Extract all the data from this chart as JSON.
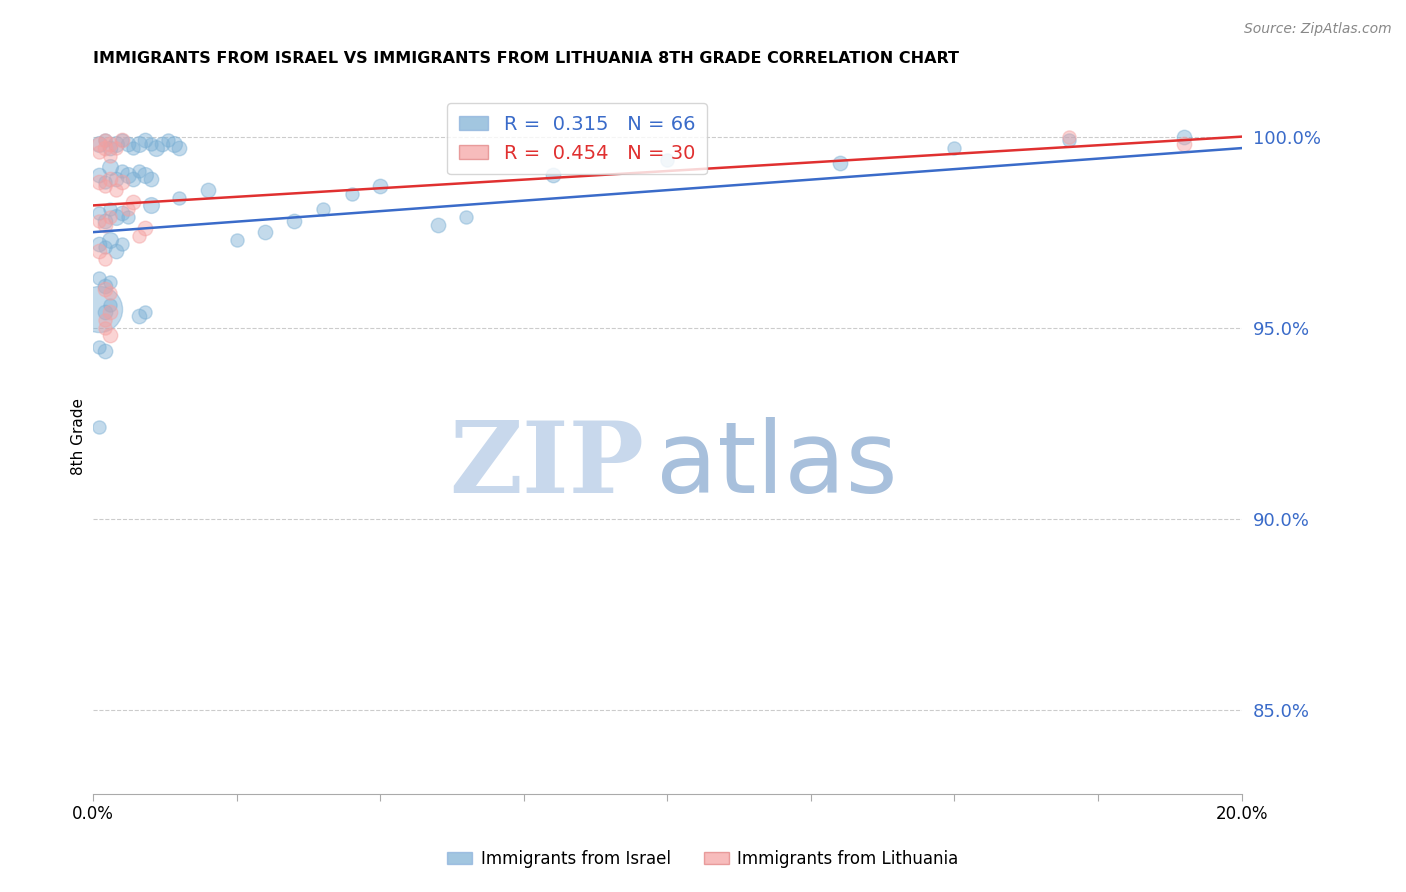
{
  "title": "IMMIGRANTS FROM ISRAEL VS IMMIGRANTS FROM LITHUANIA 8TH GRADE CORRELATION CHART",
  "source": "Source: ZipAtlas.com",
  "ylabel": "8th Grade",
  "ylabel_right_ticks": [
    100.0,
    95.0,
    90.0,
    85.0
  ],
  "ylabel_right_labels": [
    "100.0%",
    "95.0%",
    "90.0%",
    "85.0%"
  ],
  "israel_color": "#7BAFD4",
  "lithuania_color": "#F4A0A0",
  "trendline_israel_color": "#3A6BC9",
  "trendline_lithuania_color": "#E03030",
  "israel_trendline": [
    0.0,
    0.975,
    0.2,
    0.997
  ],
  "lithuania_trendline": [
    0.0,
    0.982,
    0.2,
    1.0
  ],
  "israel_points": [
    [
      0.001,
      0.998,
      12
    ],
    [
      0.002,
      0.999,
      10
    ],
    [
      0.003,
      0.997,
      11
    ],
    [
      0.004,
      0.998,
      12
    ],
    [
      0.005,
      0.999,
      10
    ],
    [
      0.006,
      0.998,
      11
    ],
    [
      0.007,
      0.997,
      10
    ],
    [
      0.008,
      0.998,
      12
    ],
    [
      0.009,
      0.999,
      11
    ],
    [
      0.01,
      0.998,
      10
    ],
    [
      0.011,
      0.997,
      12
    ],
    [
      0.012,
      0.998,
      11
    ],
    [
      0.013,
      0.999,
      10
    ],
    [
      0.014,
      0.998,
      12
    ],
    [
      0.015,
      0.997,
      11
    ],
    [
      0.001,
      0.99,
      11
    ],
    [
      0.002,
      0.988,
      10
    ],
    [
      0.003,
      0.992,
      12
    ],
    [
      0.004,
      0.989,
      11
    ],
    [
      0.005,
      0.991,
      10
    ],
    [
      0.006,
      0.99,
      12
    ],
    [
      0.007,
      0.989,
      11
    ],
    [
      0.008,
      0.991,
      10
    ],
    [
      0.009,
      0.99,
      12
    ],
    [
      0.01,
      0.989,
      11
    ],
    [
      0.001,
      0.98,
      10
    ],
    [
      0.002,
      0.978,
      11
    ],
    [
      0.003,
      0.981,
      10
    ],
    [
      0.004,
      0.979,
      12
    ],
    [
      0.005,
      0.98,
      11
    ],
    [
      0.006,
      0.979,
      10
    ],
    [
      0.001,
      0.972,
      11
    ],
    [
      0.002,
      0.971,
      10
    ],
    [
      0.003,
      0.973,
      12
    ],
    [
      0.004,
      0.97,
      11
    ],
    [
      0.005,
      0.972,
      10
    ],
    [
      0.001,
      0.963,
      10
    ],
    [
      0.002,
      0.961,
      11
    ],
    [
      0.003,
      0.962,
      10
    ],
    [
      0.001,
      0.955,
      35
    ],
    [
      0.002,
      0.954,
      11
    ],
    [
      0.003,
      0.956,
      10
    ],
    [
      0.001,
      0.945,
      10
    ],
    [
      0.002,
      0.944,
      11
    ],
    [
      0.001,
      0.924,
      10
    ],
    [
      0.008,
      0.953,
      11
    ],
    [
      0.009,
      0.954,
      10
    ],
    [
      0.025,
      0.973,
      10
    ],
    [
      0.03,
      0.975,
      11
    ],
    [
      0.06,
      0.977,
      11
    ],
    [
      0.065,
      0.979,
      10
    ],
    [
      0.035,
      0.978,
      11
    ],
    [
      0.04,
      0.981,
      10
    ],
    [
      0.01,
      0.982,
      12
    ],
    [
      0.015,
      0.984,
      10
    ],
    [
      0.02,
      0.986,
      11
    ],
    [
      0.045,
      0.985,
      10
    ],
    [
      0.05,
      0.987,
      11
    ],
    [
      0.08,
      0.99,
      11
    ],
    [
      0.1,
      0.994,
      10
    ],
    [
      0.13,
      0.993,
      11
    ],
    [
      0.15,
      0.997,
      10
    ],
    [
      0.17,
      0.999,
      10
    ],
    [
      0.19,
      1.0,
      11
    ]
  ],
  "lithuania_points": [
    [
      0.001,
      0.998,
      11
    ],
    [
      0.002,
      0.999,
      10
    ],
    [
      0.003,
      0.998,
      11
    ],
    [
      0.004,
      0.997,
      10
    ],
    [
      0.005,
      0.999,
      11
    ],
    [
      0.001,
      0.996,
      10
    ],
    [
      0.002,
      0.997,
      11
    ],
    [
      0.003,
      0.995,
      10
    ],
    [
      0.001,
      0.988,
      11
    ],
    [
      0.002,
      0.987,
      10
    ],
    [
      0.003,
      0.989,
      11
    ],
    [
      0.004,
      0.986,
      10
    ],
    [
      0.005,
      0.988,
      11
    ],
    [
      0.001,
      0.978,
      10
    ],
    [
      0.002,
      0.977,
      11
    ],
    [
      0.003,
      0.979,
      10
    ],
    [
      0.001,
      0.97,
      11
    ],
    [
      0.002,
      0.968,
      10
    ],
    [
      0.002,
      0.96,
      11
    ],
    [
      0.003,
      0.959,
      10
    ],
    [
      0.002,
      0.952,
      10
    ],
    [
      0.003,
      0.954,
      11
    ],
    [
      0.002,
      0.95,
      10
    ],
    [
      0.003,
      0.948,
      11
    ],
    [
      0.006,
      0.981,
      10
    ],
    [
      0.007,
      0.983,
      11
    ],
    [
      0.008,
      0.974,
      10
    ],
    [
      0.009,
      0.976,
      11
    ],
    [
      0.17,
      1.0,
      10
    ],
    [
      0.19,
      0.998,
      11
    ]
  ],
  "xlim": [
    0.0,
    0.2
  ],
  "ylim": [
    0.828,
    1.015
  ],
  "background_color": "#FFFFFF",
  "grid_color": "#CCCCCC"
}
